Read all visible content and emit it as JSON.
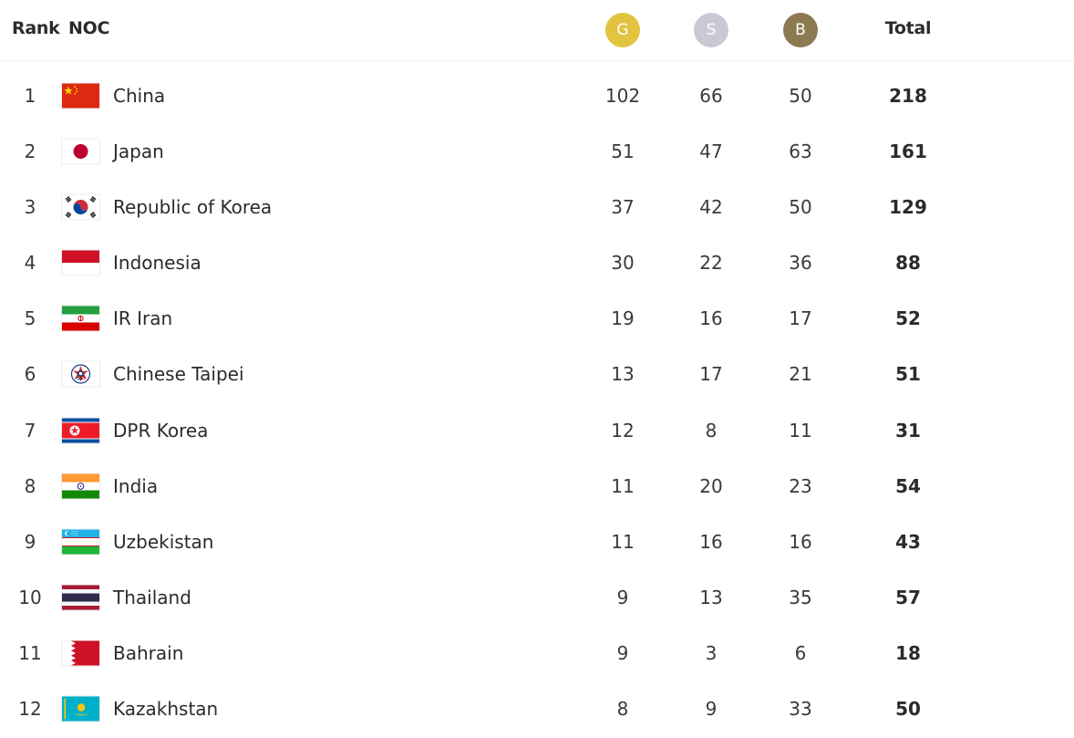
{
  "header": {
    "rank_label": "Rank",
    "noc_label": "NOC",
    "gold_label": "G",
    "silver_label": "S",
    "bronze_label": "B",
    "total_label": "Total"
  },
  "colors": {
    "gold": "#e2c33f",
    "silver": "#c8c9d3",
    "bronze": "#8c7a52"
  },
  "rows": [
    {
      "rank": "1",
      "noc": "China",
      "flag_icon": "china-flag-icon",
      "gold": "102",
      "silver": "66",
      "bronze": "50",
      "total": "218"
    },
    {
      "rank": "2",
      "noc": "Japan",
      "flag_icon": "japan-flag-icon",
      "gold": "51",
      "silver": "47",
      "bronze": "63",
      "total": "161"
    },
    {
      "rank": "3",
      "noc": "Republic of Korea",
      "flag_icon": "korea-flag-icon",
      "gold": "37",
      "silver": "42",
      "bronze": "50",
      "total": "129"
    },
    {
      "rank": "4",
      "noc": "Indonesia",
      "flag_icon": "indonesia-flag-icon",
      "gold": "30",
      "silver": "22",
      "bronze": "36",
      "total": "88"
    },
    {
      "rank": "5",
      "noc": "IR Iran",
      "flag_icon": "iran-flag-icon",
      "gold": "19",
      "silver": "16",
      "bronze": "17",
      "total": "52"
    },
    {
      "rank": "6",
      "noc": "Chinese Taipei",
      "flag_icon": "chinese-taipei-flag-icon",
      "gold": "13",
      "silver": "17",
      "bronze": "21",
      "total": "51"
    },
    {
      "rank": "7",
      "noc": "DPR Korea",
      "flag_icon": "dpr-korea-flag-icon",
      "gold": "12",
      "silver": "8",
      "bronze": "11",
      "total": "31"
    },
    {
      "rank": "8",
      "noc": "India",
      "flag_icon": "india-flag-icon",
      "gold": "11",
      "silver": "20",
      "bronze": "23",
      "total": "54"
    },
    {
      "rank": "9",
      "noc": "Uzbekistan",
      "flag_icon": "uzbekistan-flag-icon",
      "gold": "11",
      "silver": "16",
      "bronze": "16",
      "total": "43"
    },
    {
      "rank": "10",
      "noc": "Thailand",
      "flag_icon": "thailand-flag-icon",
      "gold": "9",
      "silver": "13",
      "bronze": "35",
      "total": "57"
    },
    {
      "rank": "11",
      "noc": "Bahrain",
      "flag_icon": "bahrain-flag-icon",
      "gold": "9",
      "silver": "3",
      "bronze": "6",
      "total": "18"
    },
    {
      "rank": "12",
      "noc": "Kazakhstan",
      "flag_icon": "kazakhstan-flag-icon",
      "gold": "8",
      "silver": "9",
      "bronze": "33",
      "total": "50"
    }
  ]
}
